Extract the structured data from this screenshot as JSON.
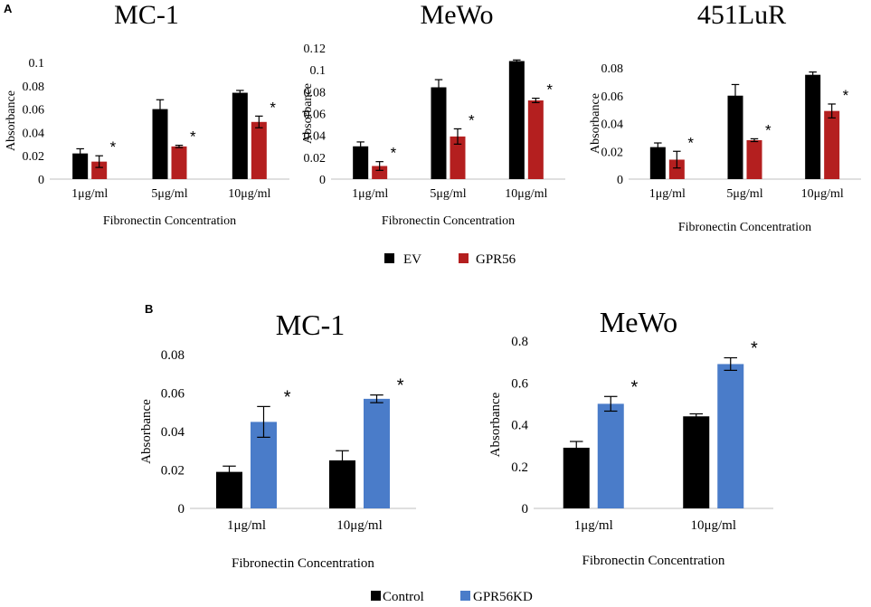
{
  "panel_labels": {
    "a": "A",
    "b": "B"
  },
  "legends": {
    "a": [
      {
        "label": "EV",
        "color": "#000000"
      },
      {
        "label": "GPR56",
        "color": "#b41f1f"
      }
    ],
    "b": [
      {
        "label": "Control",
        "color": "#000000"
      },
      {
        "label": "GPR56KD",
        "color": "#4a7cc9"
      }
    ]
  },
  "chart_data": [
    {
      "type": "bar",
      "panel": "A",
      "title": "MC-1",
      "xlabel": "Fibronectin Concentration",
      "ylabel": "Absorbance",
      "ylim": [
        0,
        0.1
      ],
      "yticks": [
        "0",
        "0.02",
        "0.04",
        "0.06",
        "0.08",
        "0.1"
      ],
      "categories": [
        "1μg/ml",
        "5μg/ml",
        "10μg/ml"
      ],
      "series": [
        {
          "name": "EV",
          "color": "#000000",
          "values": [
            0.022,
            0.06,
            0.074
          ],
          "errors": [
            0.004,
            0.008,
            0.002
          ]
        },
        {
          "name": "GPR56",
          "color": "#b41f1f",
          "values": [
            0.015,
            0.028,
            0.049
          ],
          "errors": [
            0.005,
            0.001,
            0.005
          ]
        }
      ],
      "annotations": [
        "*",
        "*",
        "*"
      ]
    },
    {
      "type": "bar",
      "panel": "A",
      "title": "MeWo",
      "xlabel": "Fibronectin Concentration",
      "ylabel": "Absorbance",
      "ylim": [
        0,
        0.12
      ],
      "yticks": [
        "0",
        "0.02",
        "0.04",
        "0.06",
        "0.08",
        "0.1",
        "0.12"
      ],
      "categories": [
        "1μg/ml",
        "5μg/ml",
        "10μg/ml"
      ],
      "series": [
        {
          "name": "EV",
          "color": "#000000",
          "values": [
            0.03,
            0.084,
            0.108
          ],
          "errors": [
            0.004,
            0.007,
            0.001
          ]
        },
        {
          "name": "GPR56",
          "color": "#b41f1f",
          "values": [
            0.012,
            0.039,
            0.072
          ],
          "errors": [
            0.004,
            0.007,
            0.002
          ]
        }
      ],
      "annotations": [
        "*",
        "*",
        "*"
      ]
    },
    {
      "type": "bar",
      "panel": "A",
      "title": "451LuR",
      "xlabel": "Fibronectin Concentration",
      "ylabel": "Absorbance",
      "ylim": [
        0,
        0.08
      ],
      "yticks": [
        "0",
        "0.02",
        "0.04",
        "0.06",
        "0.08"
      ],
      "categories": [
        "1μg/ml",
        "5μg/ml",
        "10μg/ml"
      ],
      "series": [
        {
          "name": "EV",
          "color": "#000000",
          "values": [
            0.023,
            0.06,
            0.075
          ],
          "errors": [
            0.003,
            0.008,
            0.002
          ]
        },
        {
          "name": "GPR56",
          "color": "#b41f1f",
          "values": [
            0.014,
            0.028,
            0.049
          ],
          "errors": [
            0.006,
            0.001,
            0.005
          ]
        }
      ],
      "annotations": [
        "*",
        "*",
        "*"
      ]
    },
    {
      "type": "bar",
      "panel": "B",
      "title": "MC-1",
      "xlabel": "Fibronectin Concentration",
      "ylabel": "Absorbance",
      "ylim": [
        0,
        0.08
      ],
      "yticks": [
        "0",
        "0.02",
        "0.04",
        "0.06",
        "0.08"
      ],
      "categories": [
        "1μg/ml",
        "10μg/ml"
      ],
      "series": [
        {
          "name": "Control",
          "color": "#000000",
          "values": [
            0.019,
            0.025
          ],
          "errors": [
            0.003,
            0.005
          ]
        },
        {
          "name": "GPR56KD",
          "color": "#4a7cc9",
          "values": [
            0.045,
            0.057
          ],
          "errors": [
            0.008,
            0.002
          ]
        }
      ],
      "annotations": [
        "*",
        "*"
      ]
    },
    {
      "type": "bar",
      "panel": "B",
      "title": "MeWo",
      "xlabel": "Fibronectin Concentration",
      "ylabel": "Absorbance",
      "ylim": [
        0,
        0.8
      ],
      "yticks": [
        "0",
        "0.2",
        "0.4",
        "0.6",
        "0.8"
      ],
      "categories": [
        "1μg/ml",
        "10μg/ml"
      ],
      "series": [
        {
          "name": "Control",
          "color": "#000000",
          "values": [
            0.29,
            0.44
          ],
          "errors": [
            0.03,
            0.012
          ]
        },
        {
          "name": "GPR56KD",
          "color": "#4a7cc9",
          "values": [
            0.5,
            0.69
          ],
          "errors": [
            0.035,
            0.03
          ]
        }
      ],
      "annotations": [
        "*",
        "*"
      ]
    }
  ]
}
